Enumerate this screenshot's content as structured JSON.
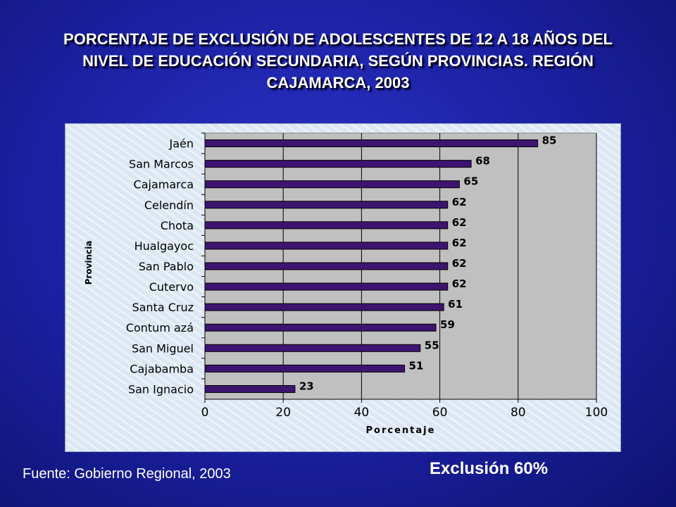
{
  "title": "PORCENTAJE DE EXCLUSIÓN DE ADOLESCENTES DE 12 A 18 AÑOS DEL NIVEL DE EDUCACIÓN SECUNDARIA, SEGÚN PROVINCIAS. REGIÓN CAJAMARCA, 2003",
  "source": "Fuente: Gobierno Regional, 2003",
  "exclusion_note": "Exclusión 60%",
  "colors": {
    "bar": "#3d1470",
    "plot_bg": "#c0c0c0",
    "text": "#000000"
  },
  "chart_data": {
    "type": "bar",
    "orientation": "horizontal",
    "categories": [
      "Jaén",
      "San Marcos",
      "Cajamarca",
      "Celendín",
      "Chota",
      "Hualgayoc",
      "San Pablo",
      "Cutervo",
      "Santa Cruz",
      "Contumazá",
      "San Miguel",
      "Cajabamba",
      "San Ignacio"
    ],
    "category_labels": [
      "Jaén",
      "San Marcos",
      "Cajamarca",
      "Celendín",
      "Chota",
      "Hualgayoc",
      "San Pablo",
      "Cutervo",
      "Santa Cruz",
      "Contum azá",
      "San Miguel",
      "Cajabamba",
      "San Ignacio"
    ],
    "values": [
      85,
      68,
      65,
      62,
      62,
      62,
      62,
      62,
      61,
      59,
      55,
      51,
      23
    ],
    "xlabel": "Porcentaje",
    "ylabel": "Provincia",
    "xlim": [
      0,
      100
    ],
    "xticks": [
      0,
      20,
      40,
      60,
      80,
      100
    ],
    "grid": true,
    "data_labels": true
  }
}
